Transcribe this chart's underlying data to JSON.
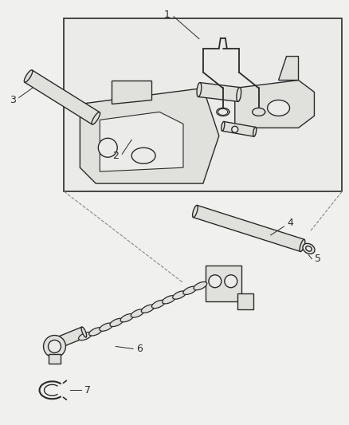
{
  "background_color": "#f0f0ee",
  "line_color": "#2a2a2a",
  "part_fill": "#e0e0dc",
  "figsize": [
    4.39,
    5.33
  ],
  "dpi": 100
}
